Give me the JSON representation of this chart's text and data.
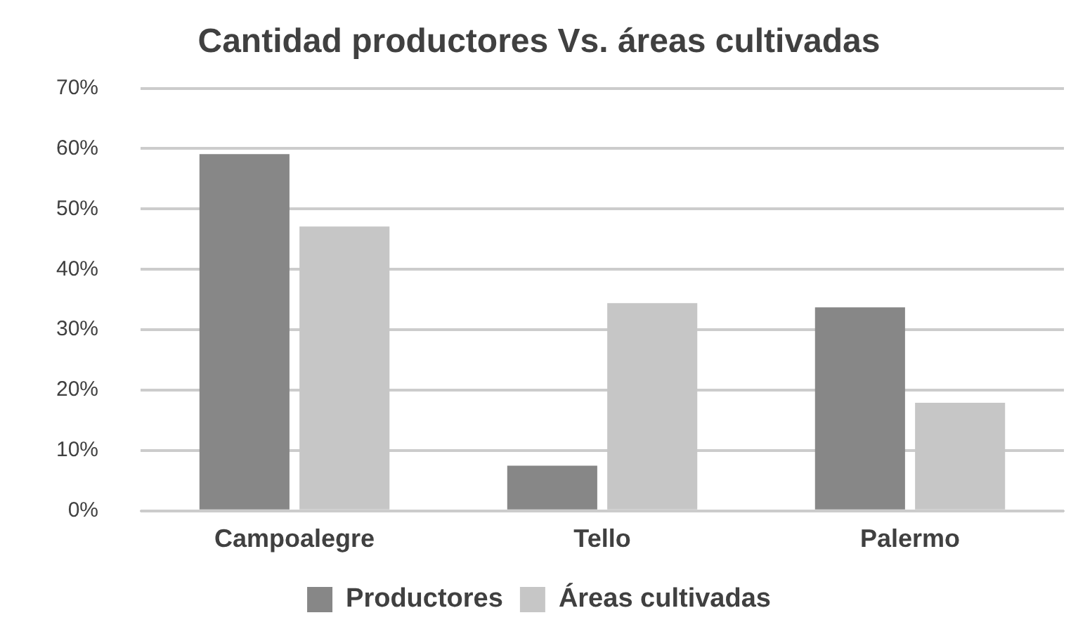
{
  "chart_data": {
    "type": "bar",
    "title": "Cantidad productores Vs. áreas cultivadas",
    "categories": [
      "Campoalegre",
      "Tello",
      "Palermo"
    ],
    "series": [
      {
        "name": "Productores",
        "color": "#878787",
        "values": [
          59.1,
          7.5,
          33.7
        ]
      },
      {
        "name": "Áreas cultivadas",
        "color": "#c6c6c6",
        "values": [
          47.1,
          34.4,
          17.9
        ]
      }
    ],
    "ylim": [
      0,
      70
    ],
    "yticks": [
      {
        "value": 0,
        "label": "0%"
      },
      {
        "value": 10,
        "label": "10%"
      },
      {
        "value": 20,
        "label": "20%"
      },
      {
        "value": 30,
        "label": "30%"
      },
      {
        "value": 40,
        "label": "40%"
      },
      {
        "value": 50,
        "label": "50%"
      },
      {
        "value": 60,
        "label": "60%"
      },
      {
        "value": 70,
        "label": "70%"
      }
    ],
    "grid": "y",
    "legend": "bottom"
  }
}
